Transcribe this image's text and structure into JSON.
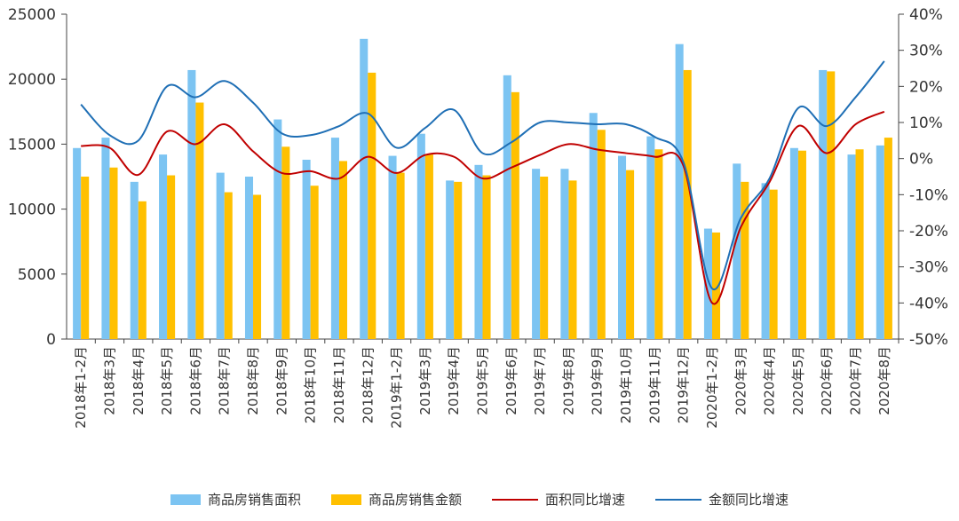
{
  "chart_data": {
    "type": "bar",
    "categories": [
      "2018年1-2月",
      "2018年3月",
      "2018年4月",
      "2018年5月",
      "2018年6月",
      "2018年7月",
      "2018年8月",
      "2018年9月",
      "2018年10月",
      "2018年11月",
      "2018年12月",
      "2019年1-2月",
      "2019年3月",
      "2019年4月",
      "2019年5月",
      "2019年6月",
      "2019年7月",
      "2019年8月",
      "2019年9月",
      "2019年10月",
      "2019年11月",
      "2019年12月",
      "2020年1-2月",
      "2020年3月",
      "2020年4月",
      "2020年5月",
      "2020年6月",
      "2020年7月",
      "2020年8月"
    ],
    "series": [
      {
        "name": "商品房销售面积",
        "type": "bar",
        "axis": "left",
        "color": "#7cc4f2",
        "values": [
          14700,
          15500,
          12100,
          14200,
          20700,
          12800,
          12500,
          16900,
          13800,
          15500,
          23100,
          14100,
          15800,
          12200,
          13400,
          20300,
          13100,
          13100,
          17400,
          14100,
          15600,
          22700,
          8500,
          13500,
          12000,
          14700,
          20700,
          14200,
          14900
        ]
      },
      {
        "name": "商品房销售金额",
        "type": "bar",
        "axis": "left",
        "color": "#ffc000",
        "values": [
          12500,
          13200,
          10600,
          12600,
          18200,
          11300,
          11100,
          14800,
          11800,
          13700,
          20500,
          12800,
          14200,
          12100,
          12600,
          19000,
          12500,
          12200,
          16100,
          13000,
          14600,
          20700,
          8200,
          12100,
          11500,
          14500,
          20600,
          14600,
          15500
        ]
      },
      {
        "name": "面积同比增速",
        "type": "line",
        "axis": "right",
        "color": "#c00000",
        "values": [
          3.5,
          3,
          -4.5,
          7.5,
          4,
          9.5,
          2,
          -4,
          -3.5,
          -5.5,
          0.5,
          -4,
          1,
          0.5,
          -5.5,
          -2.5,
          1,
          4,
          2.5,
          1.5,
          0.5,
          -2,
          -40,
          -19,
          -6.5,
          9,
          1.5,
          9.5,
          13
        ]
      },
      {
        "name": "金额同比增速",
        "type": "line",
        "axis": "right",
        "color": "#1f6fb5",
        "values": [
          15,
          6.5,
          5,
          20,
          17,
          21.5,
          15.5,
          7,
          6.5,
          9,
          12.5,
          3,
          8.5,
          13.5,
          1.5,
          4.5,
          10,
          10,
          9.5,
          9.5,
          6,
          -1,
          -36,
          -16.5,
          -5.5,
          14,
          9,
          17,
          27
        ]
      }
    ],
    "ylim_left": [
      0,
      25000
    ],
    "yticks_left": [
      "0",
      "5000",
      "10000",
      "15000",
      "20000",
      "25000"
    ],
    "ylim_right": [
      -50,
      40
    ],
    "yticks_right": [
      "-50%",
      "-40%",
      "-30%",
      "-20%",
      "-10%",
      "0%",
      "10%",
      "20%",
      "30%",
      "40%"
    ],
    "legend_position": "bottom",
    "grid": false
  }
}
